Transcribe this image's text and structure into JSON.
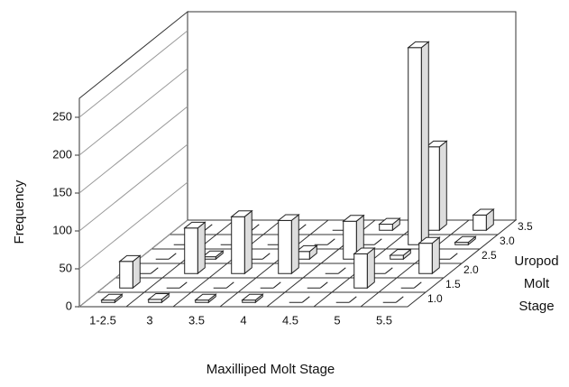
{
  "chart_data": {
    "type": "bar3d",
    "x_label": "Maxilliped Molt Stage",
    "y_label": "Frequency",
    "depth_label_lines": [
      "Uropod",
      "Molt",
      "Stage"
    ],
    "categories": [
      "1-2.5",
      "3",
      "3.5",
      "4",
      "4.5",
      "5",
      "5.5"
    ],
    "depth_categories": [
      "1.0",
      "1.5",
      "2.0",
      "2.5",
      "3.0",
      "3.5"
    ],
    "series": [
      {
        "name": "1.0",
        "values": [
          3,
          4,
          3,
          3,
          0,
          0,
          0
        ]
      },
      {
        "name": "1.5",
        "values": [
          35,
          0,
          0,
          0,
          0,
          45,
          0
        ]
      },
      {
        "name": "2.0",
        "values": [
          0,
          60,
          75,
          70,
          0,
          0,
          40
        ]
      },
      {
        "name": "2.5",
        "values": [
          0,
          3,
          0,
          10,
          50,
          5,
          0
        ]
      },
      {
        "name": "3.0",
        "values": [
          0,
          0,
          0,
          0,
          0,
          260,
          3
        ]
      },
      {
        "name": "3.5",
        "values": [
          0,
          0,
          0,
          0,
          8,
          110,
          20
        ]
      }
    ],
    "color": "#ffffff",
    "ylim": [
      0,
      275
    ],
    "yticks": [
      0,
      50,
      100,
      150,
      200,
      250
    ],
    "grid": true
  }
}
